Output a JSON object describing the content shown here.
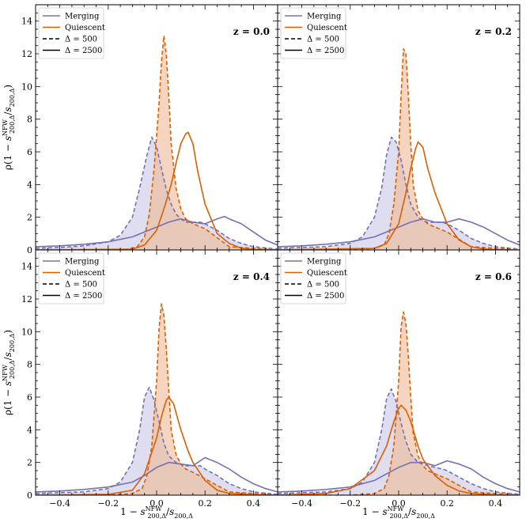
{
  "colors": {
    "merging": "#7570b3",
    "merging_fill": "#c5c3e3",
    "quiescent": "#d95f02",
    "quiescent_fill": "#efb995"
  },
  "chart_data": {
    "type": "line",
    "layout": "2x2 grid, shared axes",
    "x_range": [
      -0.5,
      0.5
    ],
    "y_range": [
      0,
      15
    ],
    "x_ticks": [
      "−0.4",
      "−0.2",
      "0.0",
      "0.2",
      "0.4"
    ],
    "y_ticks": [
      "0",
      "2",
      "4",
      "6",
      "8",
      "10",
      "12",
      "14"
    ],
    "xlabel": {
      "pre": "1 − ",
      "s": "s",
      "sup": "NFW",
      "sub1": "200,Δ",
      "mid": "/",
      "s2": "s",
      "sub2": "200,Δ"
    },
    "ylabel": {
      "pre": "ρ(1 − ",
      "s": "s",
      "sup": "NFW",
      "sub1": "200,Δ",
      "mid": "/",
      "s2": "s",
      "sub2": "200,Δ",
      "post": ")"
    },
    "legend": {
      "placement": "upper-left",
      "entries": [
        {
          "label": "Merging",
          "color": "merging",
          "style": "solid"
        },
        {
          "label": "Quiescent",
          "color": "quiescent",
          "style": "solid"
        },
        {
          "label": "Δ = 500",
          "color": "black",
          "style": "dashed"
        },
        {
          "label": "Δ = 2500",
          "color": "black",
          "style": "solid"
        }
      ]
    },
    "panels": [
      {
        "label": "z = 0.0",
        "series": [
          {
            "population": "Merging",
            "delta": 500,
            "style": "dashed",
            "filled": true,
            "x": [
              -0.5,
              -0.4,
              -0.3,
              -0.2,
              -0.15,
              -0.1,
              -0.07,
              -0.04,
              -0.02,
              0.0,
              0.02,
              0.04,
              0.06,
              0.08,
              0.1,
              0.12,
              0.15,
              0.18,
              0.2,
              0.25,
              0.3,
              0.35,
              0.4,
              0.5
            ],
            "y": [
              0.1,
              0.15,
              0.25,
              0.5,
              0.9,
              2.0,
              3.8,
              5.8,
              6.9,
              6.3,
              5.0,
              3.7,
              2.8,
              2.2,
              1.9,
              1.7,
              1.7,
              1.7,
              1.6,
              1.2,
              0.7,
              0.4,
              0.2,
              0.05
            ]
          },
          {
            "population": "Merging",
            "delta": 2500,
            "style": "solid",
            "filled": false,
            "x": [
              -0.5,
              -0.4,
              -0.3,
              -0.2,
              -0.1,
              -0.05,
              0.0,
              0.05,
              0.1,
              0.15,
              0.2,
              0.25,
              0.28,
              0.3,
              0.35,
              0.4,
              0.45,
              0.5
            ],
            "y": [
              0.2,
              0.25,
              0.35,
              0.5,
              0.8,
              1.1,
              1.4,
              1.7,
              1.9,
              1.7,
              1.6,
              1.9,
              2.05,
              1.9,
              1.6,
              1.1,
              0.6,
              0.3
            ]
          },
          {
            "population": "Quiescent",
            "delta": 500,
            "style": "dashed",
            "filled": true,
            "x": [
              -0.5,
              -0.2,
              -0.12,
              -0.08,
              -0.05,
              -0.03,
              -0.01,
              0.01,
              0.02,
              0.03,
              0.04,
              0.05,
              0.06,
              0.08,
              0.1,
              0.12,
              0.15,
              0.2,
              0.3,
              0.5
            ],
            "y": [
              0,
              0,
              0.05,
              0.2,
              0.8,
              2.2,
              5.0,
              9.0,
              11.5,
              13.1,
              12.0,
              9.5,
              6.5,
              3.8,
              2.5,
              1.9,
              1.6,
              1.3,
              0.2,
              0
            ]
          },
          {
            "population": "Quiescent",
            "delta": 2500,
            "style": "solid",
            "filled": false,
            "x": [
              -0.5,
              -0.1,
              -0.05,
              0.0,
              0.03,
              0.06,
              0.08,
              0.1,
              0.12,
              0.13,
              0.15,
              0.17,
              0.2,
              0.25,
              0.3,
              0.35,
              0.4,
              0.5
            ],
            "y": [
              0,
              0.05,
              0.3,
              1.2,
              2.5,
              4.0,
              5.3,
              6.5,
              7.1,
              7.2,
              6.5,
              4.8,
              2.8,
              1.0,
              0.4,
              0.1,
              0.03,
              0
            ]
          }
        ]
      },
      {
        "label": "z = 0.2",
        "series": [
          {
            "population": "Merging",
            "delta": 500,
            "style": "dashed",
            "filled": true,
            "x": [
              -0.5,
              -0.4,
              -0.3,
              -0.2,
              -0.15,
              -0.1,
              -0.07,
              -0.05,
              -0.03,
              -0.01,
              0.01,
              0.03,
              0.05,
              0.08,
              0.1,
              0.12,
              0.15,
              0.18,
              0.2,
              0.25,
              0.3,
              0.35,
              0.4,
              0.5
            ],
            "y": [
              0.1,
              0.15,
              0.2,
              0.4,
              0.8,
              2.0,
              3.8,
              5.8,
              6.9,
              6.6,
              5.5,
              4.0,
              2.8,
              2.0,
              1.8,
              1.7,
              1.7,
              1.7,
              1.6,
              1.2,
              0.7,
              0.4,
              0.2,
              0.05
            ]
          },
          {
            "population": "Merging",
            "delta": 2500,
            "style": "solid",
            "filled": false,
            "x": [
              -0.5,
              -0.4,
              -0.3,
              -0.2,
              -0.1,
              -0.05,
              0.0,
              0.05,
              0.1,
              0.15,
              0.2,
              0.25,
              0.3,
              0.35,
              0.4,
              0.45,
              0.5
            ],
            "y": [
              0.2,
              0.25,
              0.35,
              0.5,
              0.8,
              1.1,
              1.4,
              1.7,
              1.9,
              1.7,
              1.7,
              1.9,
              1.7,
              1.4,
              1.0,
              0.6,
              0.3
            ]
          },
          {
            "population": "Quiescent",
            "delta": 500,
            "style": "dashed",
            "filled": true,
            "x": [
              -0.5,
              -0.2,
              -0.1,
              -0.06,
              -0.04,
              -0.02,
              0.0,
              0.01,
              0.02,
              0.03,
              0.04,
              0.05,
              0.06,
              0.08,
              0.1,
              0.12,
              0.15,
              0.2,
              0.3,
              0.5
            ],
            "y": [
              0,
              0,
              0.1,
              0.3,
              1.0,
              2.8,
              6.0,
              9.5,
              12.3,
              12.0,
              9.5,
              6.5,
              4.0,
              2.4,
              1.9,
              1.6,
              1.4,
              1.1,
              0.2,
              0
            ]
          },
          {
            "population": "Quiescent",
            "delta": 2500,
            "style": "solid",
            "filled": false,
            "x": [
              -0.5,
              -0.1,
              -0.05,
              0.0,
              0.03,
              0.05,
              0.07,
              0.08,
              0.1,
              0.12,
              0.15,
              0.2,
              0.25,
              0.3,
              0.35,
              0.4,
              0.5
            ],
            "y": [
              0,
              0.1,
              0.4,
              1.6,
              3.5,
              5.0,
              6.2,
              6.6,
              6.3,
              5.0,
              3.5,
              1.6,
              0.6,
              0.2,
              0.06,
              0.02,
              0
            ]
          }
        ]
      },
      {
        "label": "z = 0.4",
        "series": [
          {
            "population": "Merging",
            "delta": 500,
            "style": "dashed",
            "filled": true,
            "x": [
              -0.5,
              -0.4,
              -0.3,
              -0.2,
              -0.15,
              -0.1,
              -0.07,
              -0.05,
              -0.03,
              -0.01,
              0.01,
              0.03,
              0.05,
              0.08,
              0.1,
              0.12,
              0.15,
              0.18,
              0.2,
              0.25,
              0.3,
              0.35,
              0.4,
              0.5
            ],
            "y": [
              0.1,
              0.15,
              0.2,
              0.4,
              0.8,
              2.0,
              4.0,
              6.0,
              6.6,
              5.8,
              4.5,
              3.2,
              2.4,
              2.0,
              1.9,
              1.8,
              1.8,
              1.8,
              1.6,
              1.2,
              0.7,
              0.4,
              0.2,
              0.05
            ]
          },
          {
            "population": "Merging",
            "delta": 2500,
            "style": "solid",
            "filled": false,
            "x": [
              -0.5,
              -0.4,
              -0.3,
              -0.2,
              -0.1,
              -0.05,
              0.0,
              0.05,
              0.1,
              0.15,
              0.2,
              0.25,
              0.3,
              0.35,
              0.4,
              0.45,
              0.5
            ],
            "y": [
              0.2,
              0.25,
              0.35,
              0.5,
              0.8,
              1.2,
              1.7,
              2.0,
              1.9,
              1.8,
              2.3,
              2.0,
              1.6,
              1.1,
              0.7,
              0.4,
              0.2
            ]
          },
          {
            "population": "Quiescent",
            "delta": 500,
            "style": "dashed",
            "filled": true,
            "x": [
              -0.5,
              -0.2,
              -0.1,
              -0.06,
              -0.04,
              -0.02,
              0.0,
              0.01,
              0.02,
              0.03,
              0.04,
              0.05,
              0.06,
              0.08,
              0.1,
              0.12,
              0.15,
              0.2,
              0.3,
              0.5
            ],
            "y": [
              0,
              0,
              0.1,
              0.4,
              1.2,
              3.0,
              7.0,
              10.2,
              11.7,
              11.0,
              9.0,
              6.5,
              4.0,
              2.5,
              1.9,
              1.6,
              1.4,
              1.0,
              0.2,
              0
            ]
          },
          {
            "population": "Quiescent",
            "delta": 2500,
            "style": "solid",
            "filled": false,
            "x": [
              -0.5,
              -0.2,
              -0.1,
              -0.05,
              0.0,
              0.02,
              0.04,
              0.05,
              0.07,
              0.1,
              0.13,
              0.15,
              0.2,
              0.25,
              0.3,
              0.4,
              0.5
            ],
            "y": [
              0,
              0.05,
              0.3,
              1.3,
              3.5,
              4.8,
              5.8,
              6.0,
              5.6,
              4.0,
              2.7,
              2.0,
              0.9,
              0.3,
              0.1,
              0.02,
              0
            ]
          }
        ]
      },
      {
        "label": "z = 0.6",
        "series": [
          {
            "population": "Merging",
            "delta": 500,
            "style": "dashed",
            "filled": true,
            "x": [
              -0.5,
              -0.4,
              -0.3,
              -0.2,
              -0.15,
              -0.1,
              -0.07,
              -0.05,
              -0.03,
              -0.01,
              0.01,
              0.03,
              0.05,
              0.08,
              0.1,
              0.12,
              0.15,
              0.18,
              0.2,
              0.25,
              0.3,
              0.35,
              0.4,
              0.5
            ],
            "y": [
              0.1,
              0.15,
              0.2,
              0.4,
              0.8,
              2.0,
              4.0,
              5.9,
              6.5,
              5.7,
              4.4,
              3.3,
              2.5,
              2.0,
              1.9,
              1.8,
              1.7,
              1.6,
              1.5,
              1.1,
              0.7,
              0.4,
              0.2,
              0.05
            ]
          },
          {
            "population": "Merging",
            "delta": 2500,
            "style": "solid",
            "filled": false,
            "x": [
              -0.5,
              -0.4,
              -0.3,
              -0.2,
              -0.1,
              -0.05,
              0.0,
              0.05,
              0.1,
              0.15,
              0.2,
              0.25,
              0.3,
              0.35,
              0.4,
              0.45,
              0.5
            ],
            "y": [
              0.2,
              0.25,
              0.35,
              0.5,
              0.9,
              1.3,
              1.7,
              2.0,
              2.0,
              1.8,
              2.1,
              1.9,
              1.6,
              1.1,
              0.7,
              0.4,
              0.2
            ]
          },
          {
            "population": "Quiescent",
            "delta": 500,
            "style": "dashed",
            "filled": true,
            "x": [
              -0.5,
              -0.2,
              -0.1,
              -0.06,
              -0.04,
              -0.02,
              0.0,
              0.01,
              0.02,
              0.03,
              0.04,
              0.05,
              0.06,
              0.08,
              0.1,
              0.12,
              0.15,
              0.2,
              0.3,
              0.5
            ],
            "y": [
              0,
              0,
              0.1,
              0.4,
              1.2,
              3.0,
              7.0,
              10.3,
              11.2,
              10.5,
              8.5,
              6.0,
              3.8,
              2.4,
              1.8,
              1.5,
              1.3,
              1.0,
              0.2,
              0
            ]
          },
          {
            "population": "Quiescent",
            "delta": 2500,
            "style": "solid",
            "filled": false,
            "x": [
              -0.5,
              -0.3,
              -0.2,
              -0.1,
              -0.05,
              -0.02,
              0.0,
              0.01,
              0.03,
              0.05,
              0.08,
              0.1,
              0.15,
              0.2,
              0.25,
              0.3,
              0.4,
              0.5
            ],
            "y": [
              0,
              0.1,
              0.4,
              1.5,
              3.0,
              4.5,
              5.3,
              5.5,
              5.2,
              4.5,
              3.0,
              2.2,
              1.2,
              0.6,
              0.25,
              0.1,
              0.02,
              0
            ]
          }
        ]
      }
    ]
  }
}
